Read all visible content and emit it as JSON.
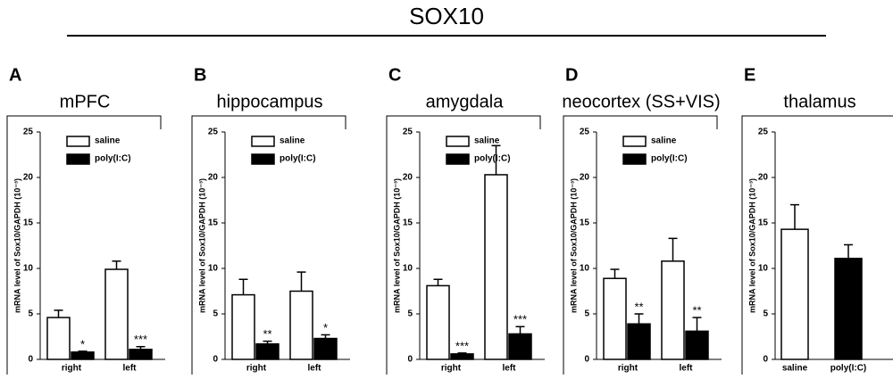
{
  "figure_title": "SOX10",
  "chart_data": [
    {
      "type": "bar",
      "label": "A",
      "title": "mPFC",
      "ylabel": "mRNA level of Sox10/GAPDH (10⁻³)",
      "categories": [
        "right",
        "left"
      ],
      "ylim": [
        0,
        25
      ],
      "yticks": [
        0,
        5,
        10,
        15,
        20,
        25
      ],
      "series": [
        {
          "name": "saline",
          "color": "#ffffff",
          "values": [
            4.6,
            9.9
          ],
          "errors": [
            0.8,
            0.9
          ]
        },
        {
          "name": "poly(I:C)",
          "color": "#000000",
          "values": [
            0.8,
            1.1
          ],
          "errors": [
            0.1,
            0.3
          ],
          "annotations": [
            "*",
            "***"
          ]
        }
      ]
    },
    {
      "type": "bar",
      "label": "B",
      "title": "hippocampus",
      "ylabel": "mRNA level of Sox10/GAPDH (10⁻³)",
      "categories": [
        "right",
        "left"
      ],
      "ylim": [
        0,
        25
      ],
      "yticks": [
        0,
        5,
        10,
        15,
        20,
        25
      ],
      "series": [
        {
          "name": "saline",
          "color": "#ffffff",
          "values": [
            7.1,
            7.5
          ],
          "errors": [
            1.7,
            2.1
          ]
        },
        {
          "name": "poly(I:C)",
          "color": "#000000",
          "values": [
            1.7,
            2.3
          ],
          "errors": [
            0.3,
            0.4
          ],
          "annotations": [
            "**",
            "*"
          ]
        }
      ]
    },
    {
      "type": "bar",
      "label": "C",
      "title": "amygdala",
      "ylabel": "mRNA level of Sox10/GAPDH (10⁻³)",
      "categories": [
        "right",
        "left"
      ],
      "ylim": [
        0,
        25
      ],
      "yticks": [
        0,
        5,
        10,
        15,
        20,
        25
      ],
      "series": [
        {
          "name": "saline",
          "color": "#ffffff",
          "values": [
            8.1,
            20.3
          ],
          "errors": [
            0.7,
            3.2
          ]
        },
        {
          "name": "poly(I:C)",
          "color": "#000000",
          "values": [
            0.6,
            2.8
          ],
          "errors": [
            0.1,
            0.8
          ],
          "annotations": [
            "***",
            "***"
          ]
        }
      ]
    },
    {
      "type": "bar",
      "label": "D",
      "title": "neocortex (SS+VIS)",
      "ylabel": "mRNA level of Sox10/GAPDH (10⁻³)",
      "categories": [
        "right",
        "left"
      ],
      "ylim": [
        0,
        25
      ],
      "yticks": [
        0,
        5,
        10,
        15,
        20,
        25
      ],
      "series": [
        {
          "name": "saline",
          "color": "#ffffff",
          "values": [
            8.9,
            10.8
          ],
          "errors": [
            1.0,
            2.5
          ]
        },
        {
          "name": "poly(I:C)",
          "color": "#000000",
          "values": [
            3.9,
            3.1
          ],
          "errors": [
            1.1,
            1.5
          ],
          "annotations": [
            "**",
            "**"
          ]
        }
      ]
    },
    {
      "type": "bar",
      "label": "E",
      "title": "thalamus",
      "ylabel": "mRNA level of Sox10/GAPDH (10⁻³)",
      "categories": [
        "saline",
        "poly(I:C)"
      ],
      "ylim": [
        0,
        25
      ],
      "yticks": [
        0,
        5,
        10,
        15,
        20,
        25
      ],
      "series": [
        {
          "colors": [
            "#ffffff",
            "#000000"
          ],
          "values": [
            14.3,
            11.1
          ],
          "errors": [
            2.7,
            1.5
          ]
        }
      ]
    }
  ]
}
